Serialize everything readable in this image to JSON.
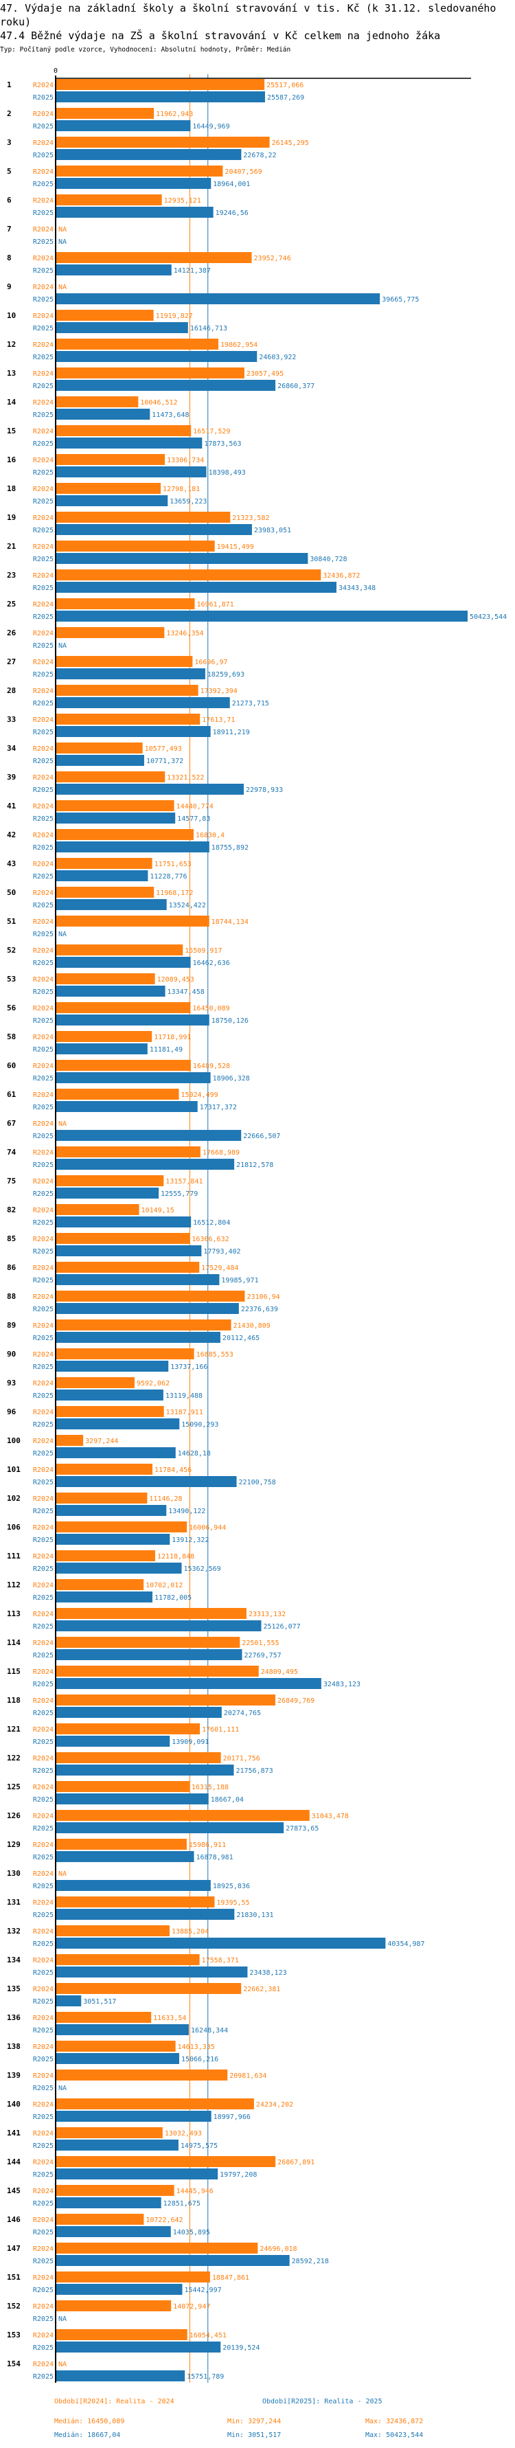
{
  "header": {
    "title": "47. Výdaje na základní školy a školní stravování v tis. Kč (k 31.12. sledovaného roku)",
    "subtitle_main": "47.4 Běžné výdaje na ZŠ a školní stravování v Kč celkem na jednoho žáka",
    "meta": "Typ: Počítaný podle vzorce, Vyhodnocení: Absolutní hodnoty, Průměr: Medián"
  },
  "colors": {
    "R2024": "#ff7f0e",
    "R2025": "#1f77b4",
    "axis": "#000000"
  },
  "chart_data": {
    "type": "bar",
    "orientation": "horizontal",
    "title": "47.4 Běžné výdaje na ZŠ a školní stravování v Kč celkem na jednoho žáka",
    "xlabel": "",
    "ylabel": "",
    "axis_zero_label": "0",
    "xlim": [
      0,
      52000
    ],
    "na_label": "NA",
    "series_names": [
      "R2024",
      "R2025"
    ],
    "categories": [
      "1",
      "2",
      "3",
      "5",
      "6",
      "7",
      "8",
      "9",
      "10",
      "12",
      "13",
      "14",
      "15",
      "16",
      "18",
      "19",
      "21",
      "23",
      "25",
      "26",
      "27",
      "28",
      "33",
      "34",
      "39",
      "41",
      "42",
      "43",
      "50",
      "51",
      "52",
      "53",
      "56",
      "58",
      "60",
      "61",
      "67",
      "74",
      "75",
      "82",
      "85",
      "86",
      "88",
      "89",
      "90",
      "93",
      "96",
      "100",
      "101",
      "102",
      "106",
      "111",
      "112",
      "113",
      "114",
      "115",
      "118",
      "121",
      "122",
      "125",
      "126",
      "129",
      "130",
      "131",
      "132",
      "134",
      "135",
      "136",
      "138",
      "139",
      "140",
      "141",
      "144",
      "145",
      "146",
      "147",
      "151",
      "152",
      "153",
      "154"
    ],
    "series": [
      {
        "name": "R2024",
        "values": [
          25517.066,
          11962.943,
          26145.295,
          20407.569,
          12935.121,
          null,
          23952.746,
          null,
          11919.827,
          19862.954,
          23057.495,
          10046.512,
          16517.529,
          13306.734,
          12798.181,
          21323.582,
          19415.499,
          32436.872,
          16961.871,
          13246.354,
          16696.97,
          17392.394,
          17613.71,
          10577.493,
          13321.522,
          14440.774,
          16830.4,
          11751.653,
          11968.172,
          18744.134,
          15509.917,
          12089.453,
          16450.089,
          11718.991,
          16489.528,
          15024.499,
          null,
          17668.989,
          13157.841,
          10149.15,
          16366.632,
          17529.484,
          23106.94,
          21430.809,
          16885.553,
          9592.062,
          13187.911,
          3297.244,
          11784.456,
          11146.28,
          16006.944,
          12118.848,
          10702.012,
          23313.132,
          22501.555,
          24809.495,
          26849.769,
          17601.111,
          20171.756,
          16315.188,
          31043.478,
          15986.911,
          null,
          19395.55,
          13885.204,
          17558.371,
          22662.381,
          11633.54,
          14613.335,
          20981.634,
          24234.202,
          13032.493,
          26867.891,
          14445.946,
          10722.642,
          24696.018,
          18847.861,
          14072.947,
          16054.451,
          null
        ]
      },
      {
        "name": "R2025",
        "values": [
          25587.269,
          16449.969,
          22678.22,
          18964.001,
          19246.56,
          null,
          14121.387,
          39665.775,
          16146.713,
          24603.922,
          26860.377,
          11473.648,
          17873.563,
          18398.493,
          13659.223,
          23983.051,
          30840.728,
          34343.348,
          50423.544,
          null,
          18259.693,
          21273.715,
          18911.219,
          10771.372,
          22978.933,
          14577.83,
          18755.892,
          11228.776,
          13524.422,
          null,
          16462.636,
          13347.458,
          18750.126,
          11181.49,
          18906.328,
          17317.372,
          22666.507,
          21812.578,
          12555.779,
          16512.804,
          17793.402,
          19985.971,
          22376.639,
          20112.465,
          13737.166,
          13119.488,
          15090.293,
          14628.18,
          22100.758,
          13490.122,
          13912.322,
          15362.569,
          11782.005,
          25126.077,
          22769.757,
          32483.123,
          20274.765,
          13909.091,
          21756.873,
          18667.04,
          27873.65,
          16878.981,
          18925.836,
          21830.131,
          40354.987,
          23438.123,
          3051.517,
          16248.344,
          15066.216,
          null,
          18997.966,
          14975.575,
          19797.208,
          12851.675,
          14035.895,
          28592.218,
          15442.997,
          null,
          20139.524,
          15751.789
        ]
      }
    ],
    "reference_lines": [
      {
        "series": "R2024",
        "label": "Medián",
        "value": 16450.089
      },
      {
        "series": "R2025",
        "label": "Medián",
        "value": 18667.04
      }
    ],
    "legend_position": "bottom"
  },
  "legend": {
    "r2024_period": "Období[R2024]: Realita - 2024",
    "r2025_period": "Období[R2025]: Realita - 2025",
    "r2024_median": "Medián: 16450,089",
    "r2024_min": "Min: 3297,244",
    "r2024_max": "Max: 32436,872",
    "r2025_median": "Medián: 18667,04",
    "r2025_min": "Min: 3051,517",
    "r2025_max": "Max: 50423,544"
  }
}
